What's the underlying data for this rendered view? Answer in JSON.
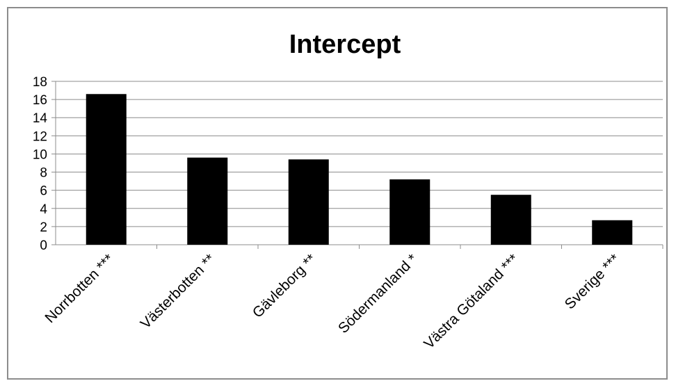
{
  "chart_data": {
    "type": "bar",
    "title": "Intercept",
    "categories": [
      "Norrbotten ***",
      "Västerbotten **",
      "Gävleborg **",
      "Södermanland *",
      "Västra Götaland ***",
      "Sverige ***"
    ],
    "values": [
      16.6,
      9.6,
      9.4,
      7.2,
      5.5,
      2.7
    ],
    "yticks": [
      "0",
      "2",
      "4",
      "6",
      "8",
      "10",
      "12",
      "14",
      "16",
      "18"
    ],
    "ylim": [
      0,
      18
    ],
    "grid": true,
    "legend": "none",
    "colors": {
      "bar": "#000000",
      "grid": "#8c8c8c",
      "axis": "#8c8c8c"
    }
  }
}
